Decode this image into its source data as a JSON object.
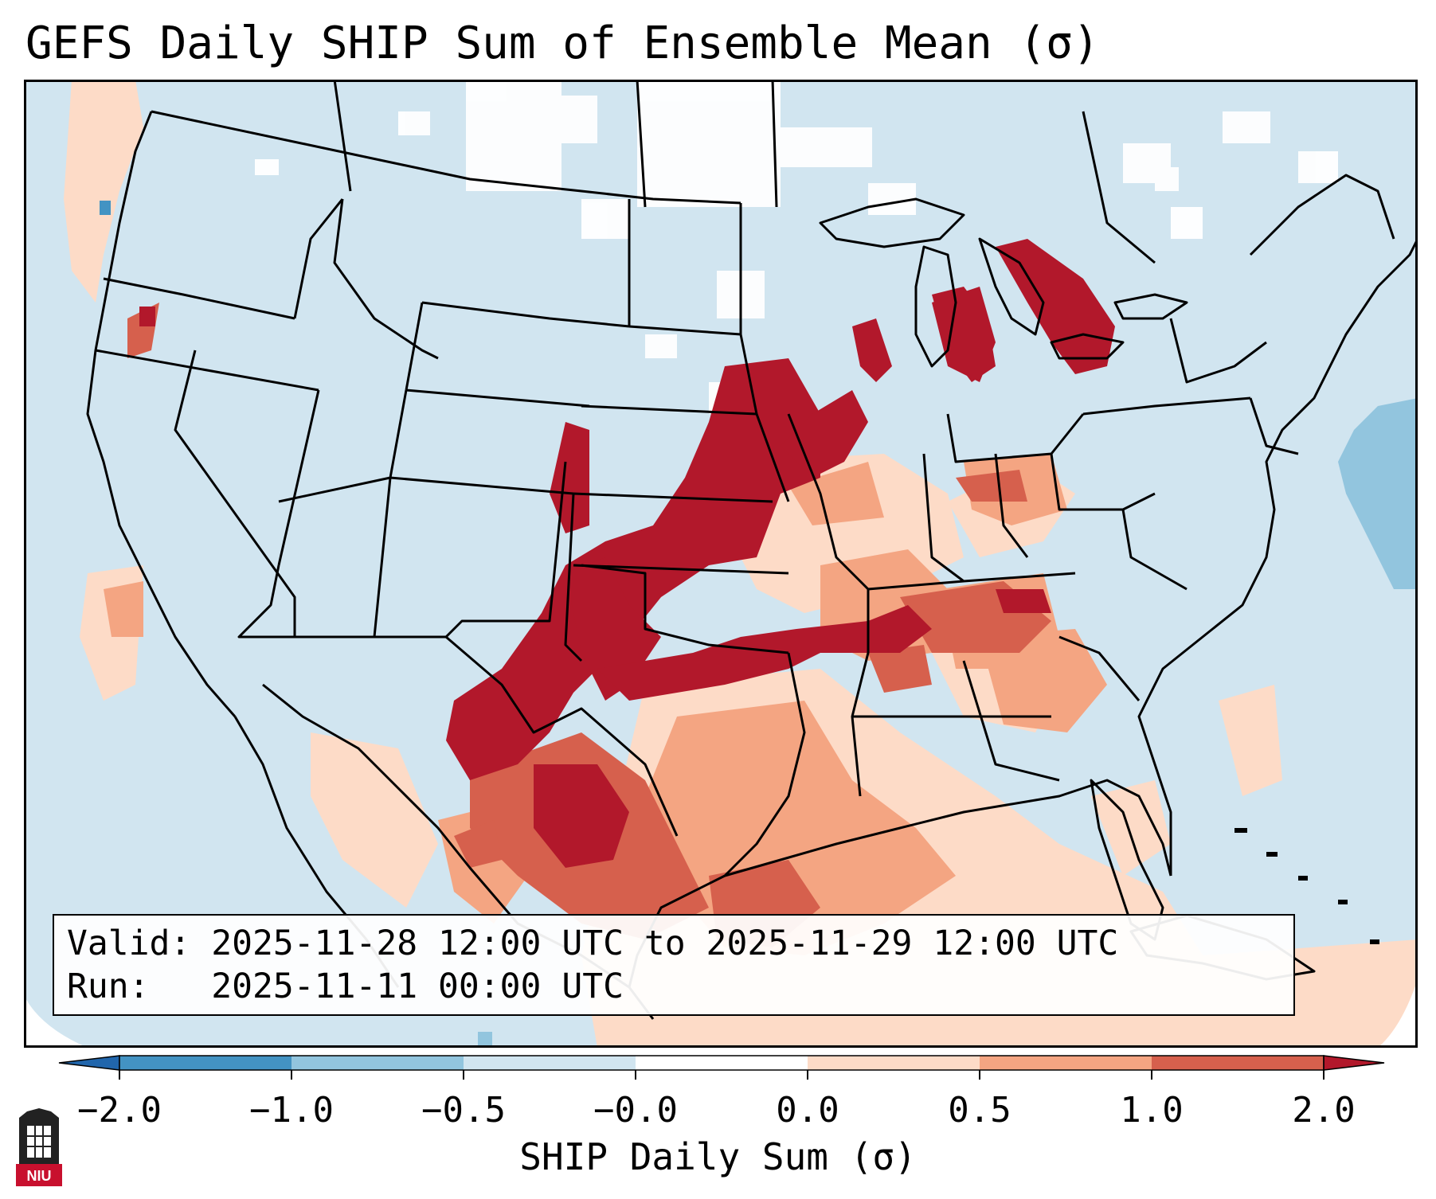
{
  "title": "GEFS Daily SHIP Sum of Ensemble Mean (σ)",
  "info": {
    "valid_label": "Valid:",
    "valid_text": "2025-11-28 12:00 UTC to 2025-11-29 12:00 UTC",
    "run_label": "Run:",
    "run_text": "2025-11-11 00:00 UTC"
  },
  "colorbar": {
    "label": "SHIP Daily Sum (σ)",
    "ticks": [
      "−2.0",
      "−1.0",
      "−0.5",
      "−0.0",
      "0.0",
      "0.5",
      "1.0",
      "2.0"
    ],
    "bins": [
      {
        "range": "< -2.0",
        "color": "#2166ac"
      },
      {
        "range": "-2.0 to -1.0",
        "color": "#4393c3"
      },
      {
        "range": "-1.0 to -0.5",
        "color": "#92c5de"
      },
      {
        "range": "-0.5 to -0.0",
        "color": "#d1e5f0"
      },
      {
        "range": "-0.0 to 0.0",
        "color": "#ffffff"
      },
      {
        "range": "0.0 to 0.5",
        "color": "#fddbc7"
      },
      {
        "range": "0.5 to 1.0",
        "color": "#f4a582"
      },
      {
        "range": "1.0 to 2.0",
        "color": "#d6604d"
      },
      {
        "range": "> 2.0",
        "color": "#b2182b"
      }
    ]
  },
  "logo": {
    "text": "NIU",
    "color": "#c8102e"
  }
}
